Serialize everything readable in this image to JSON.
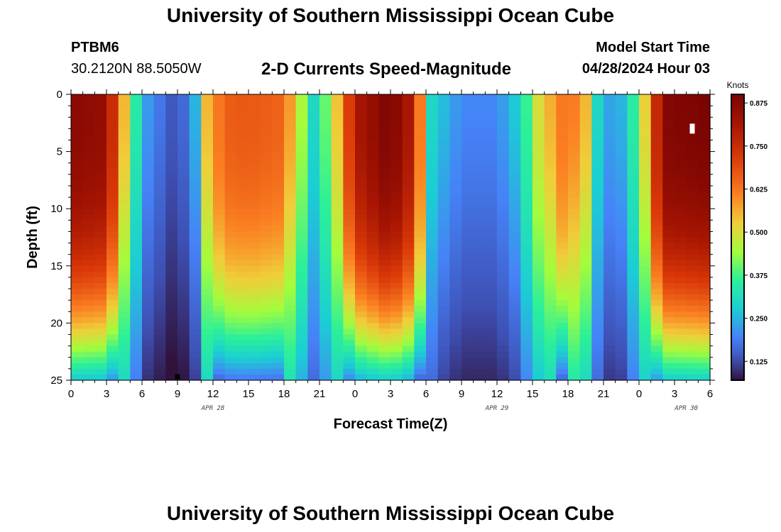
{
  "header": {
    "title": "University of Southern Mississippi Ocean Cube",
    "station": "PTBM6",
    "coords": "30.2120N  88.5050W",
    "subtitle": "2-D Currents Speed-Magnitude",
    "model_start_label": "Model Start Time",
    "model_start_value": "04/28/2024 Hour 03"
  },
  "footer": {
    "title": "University of Southern Mississippi Ocean Cube"
  },
  "chart_data": {
    "type": "heatmap",
    "xlabel": "Forecast Time(Z)",
    "ylabel": "Depth (ft)",
    "x_range_hours": [
      0,
      54
    ],
    "ylim": [
      0,
      25
    ],
    "x_ticks": [
      {
        "h": 0,
        "label": "0"
      },
      {
        "h": 3,
        "label": "3"
      },
      {
        "h": 6,
        "label": "6"
      },
      {
        "h": 9,
        "label": "9"
      },
      {
        "h": 12,
        "label": "12"
      },
      {
        "h": 15,
        "label": "15"
      },
      {
        "h": 18,
        "label": "18"
      },
      {
        "h": 21,
        "label": "21"
      },
      {
        "h": 24,
        "label": "0"
      },
      {
        "h": 27,
        "label": "3"
      },
      {
        "h": 30,
        "label": "6"
      },
      {
        "h": 33,
        "label": "9"
      },
      {
        "h": 36,
        "label": "12"
      },
      {
        "h": 39,
        "label": "15"
      },
      {
        "h": 42,
        "label": "18"
      },
      {
        "h": 45,
        "label": "21"
      },
      {
        "h": 48,
        "label": "0"
      },
      {
        "h": 51,
        "label": "3"
      },
      {
        "h": 54,
        "label": "6"
      }
    ],
    "y_ticks": [
      0,
      5,
      10,
      15,
      20,
      25
    ],
    "date_labels": [
      {
        "h": 12,
        "label": "APR 28"
      },
      {
        "h": 36,
        "label": "APR 29"
      },
      {
        "h": 52,
        "label": "APR 30"
      }
    ],
    "colorbar": {
      "title": "Knots",
      "min": 0.07,
      "max": 0.9,
      "ticks": [
        0.125,
        0.25,
        0.375,
        0.5,
        0.625,
        0.75,
        0.875
      ],
      "tick_labels": [
        "0.125",
        "0.250",
        "0.375",
        "0.500",
        "0.625",
        "0.750",
        "0.875"
      ]
    },
    "surface_speed_profile": [
      {
        "h": 0,
        "v": 0.87
      },
      {
        "h": 3,
        "v": 0.85
      },
      {
        "h": 4.5,
        "v": 0.55
      },
      {
        "h": 6,
        "v": 0.24
      },
      {
        "h": 9,
        "v": 0.12
      },
      {
        "h": 10.5,
        "v": 0.25
      },
      {
        "h": 11.5,
        "v": 0.55
      },
      {
        "h": 13,
        "v": 0.66
      },
      {
        "h": 15,
        "v": 0.67
      },
      {
        "h": 18,
        "v": 0.65
      },
      {
        "h": 19.5,
        "v": 0.45
      },
      {
        "h": 20.5,
        "v": 0.3
      },
      {
        "h": 22,
        "v": 0.45
      },
      {
        "h": 24,
        "v": 0.8
      },
      {
        "h": 27,
        "v": 0.9
      },
      {
        "h": 29,
        "v": 0.78
      },
      {
        "h": 30.5,
        "v": 0.3
      },
      {
        "h": 33,
        "v": 0.2
      },
      {
        "h": 36,
        "v": 0.2
      },
      {
        "h": 38,
        "v": 0.3
      },
      {
        "h": 39.5,
        "v": 0.5
      },
      {
        "h": 42,
        "v": 0.65
      },
      {
        "h": 43.5,
        "v": 0.55
      },
      {
        "h": 44.5,
        "v": 0.3
      },
      {
        "h": 46,
        "v": 0.2
      },
      {
        "h": 48,
        "v": 0.4
      },
      {
        "h": 50,
        "v": 0.88
      },
      {
        "h": 54,
        "v": 0.9
      }
    ],
    "markers": [
      {
        "h": 52.5,
        "depth": 3,
        "color": "#ffffff"
      },
      {
        "h": 9,
        "depth": 24.7,
        "color": "#000000"
      }
    ]
  }
}
